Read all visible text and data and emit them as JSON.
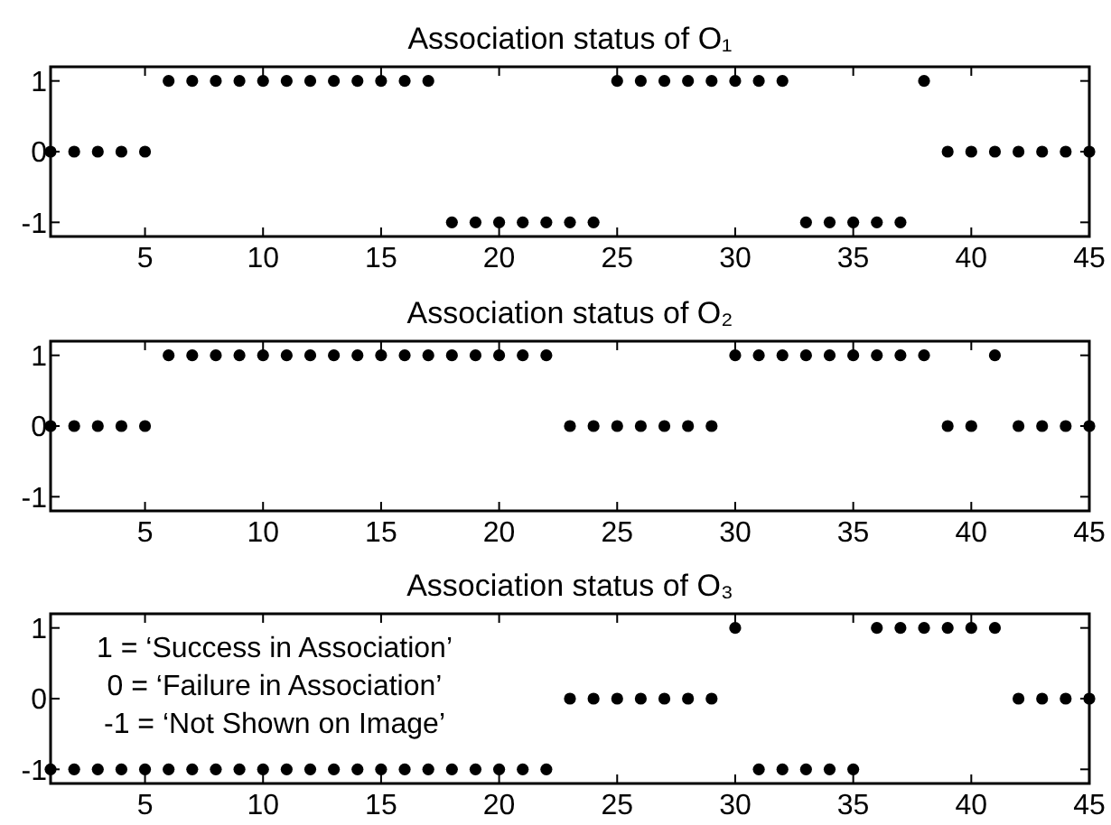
{
  "chart_data": [
    {
      "type": "scatter",
      "title": "Association status of O₁",
      "x": [
        1,
        2,
        3,
        4,
        5,
        6,
        7,
        8,
        9,
        10,
        11,
        12,
        13,
        14,
        15,
        16,
        17,
        18,
        19,
        20,
        21,
        22,
        23,
        24,
        25,
        26,
        27,
        28,
        29,
        30,
        31,
        32,
        33,
        34,
        35,
        36,
        37,
        38,
        39,
        40,
        41,
        42,
        43,
        44,
        45
      ],
      "series": [
        {
          "color": "#000000",
          "values": [
            0,
            0,
            0,
            0,
            0,
            1,
            1,
            1,
            1,
            1,
            1,
            1,
            1,
            1,
            1,
            1,
            1,
            -1,
            -1,
            -1,
            -1,
            -1,
            -1,
            -1,
            1,
            1,
            1,
            1,
            1,
            1,
            1,
            1,
            -1,
            -1,
            -1,
            -1,
            -1,
            1,
            0,
            0,
            0,
            0,
            0,
            0,
            0
          ]
        }
      ],
      "marker": "circle",
      "xlim": [
        1,
        45
      ],
      "ylim": [
        -1.2,
        1.2
      ],
      "xticks": [
        5,
        10,
        15,
        20,
        25,
        30,
        35,
        40,
        45
      ],
      "yticks": [
        -1,
        0,
        1
      ]
    },
    {
      "type": "scatter",
      "title": "Association status of O₂",
      "x": [
        1,
        2,
        3,
        4,
        5,
        6,
        7,
        8,
        9,
        10,
        11,
        12,
        13,
        14,
        15,
        16,
        17,
        18,
        19,
        20,
        21,
        22,
        23,
        24,
        25,
        26,
        27,
        28,
        29,
        30,
        31,
        32,
        33,
        34,
        35,
        36,
        37,
        38,
        39,
        40,
        41,
        42,
        43,
        44,
        45
      ],
      "series": [
        {
          "color": "#000000",
          "values": [
            0,
            0,
            0,
            0,
            0,
            1,
            1,
            1,
            1,
            1,
            1,
            1,
            1,
            1,
            1,
            1,
            1,
            1,
            1,
            1,
            1,
            1,
            0,
            0,
            0,
            0,
            0,
            0,
            0,
            1,
            1,
            1,
            1,
            1,
            1,
            1,
            1,
            1,
            0,
            0,
            1,
            0,
            0,
            0,
            0
          ]
        }
      ],
      "marker": "circle",
      "xlim": [
        1,
        45
      ],
      "ylim": [
        -1.2,
        1.2
      ],
      "xticks": [
        5,
        10,
        15,
        20,
        25,
        30,
        35,
        40,
        45
      ],
      "yticks": [
        -1,
        0,
        1
      ]
    },
    {
      "type": "scatter",
      "title": "Association status of O₃",
      "x": [
        1,
        2,
        3,
        4,
        5,
        6,
        7,
        8,
        9,
        10,
        11,
        12,
        13,
        14,
        15,
        16,
        17,
        18,
        19,
        20,
        21,
        22,
        23,
        24,
        25,
        26,
        27,
        28,
        29,
        30,
        31,
        32,
        33,
        34,
        35,
        36,
        37,
        38,
        39,
        40,
        41,
        42,
        43,
        44,
        45
      ],
      "series": [
        {
          "color": "#000000",
          "values": [
            -1,
            -1,
            -1,
            -1,
            -1,
            -1,
            -1,
            -1,
            -1,
            -1,
            -1,
            -1,
            -1,
            -1,
            -1,
            -1,
            -1,
            -1,
            -1,
            -1,
            -1,
            -1,
            0,
            0,
            0,
            0,
            0,
            0,
            0,
            1,
            -1,
            -1,
            -1,
            -1,
            -1,
            1,
            1,
            1,
            1,
            1,
            1,
            0,
            0,
            0,
            0
          ]
        }
      ],
      "marker": "circle",
      "xlim": [
        1,
        45
      ],
      "ylim": [
        -1.2,
        1.2
      ],
      "xticks": [
        5,
        10,
        15,
        20,
        25,
        30,
        35,
        40,
        45
      ],
      "yticks": [
        -1,
        0,
        1
      ],
      "annotations": [
        "1 = ‘Success in Association’",
        "0 = ‘Failure in Association’",
        "-1 = ‘Not Shown on Image’"
      ]
    }
  ]
}
